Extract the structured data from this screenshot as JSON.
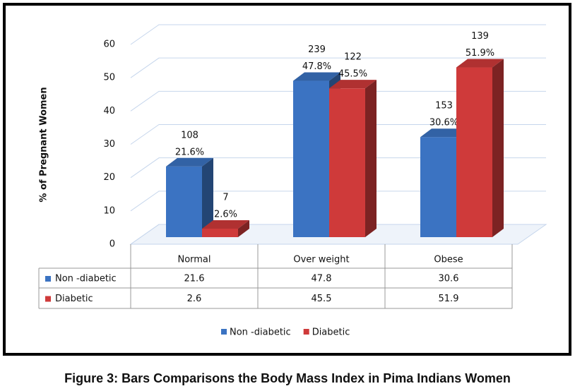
{
  "chart_data": {
    "type": "bar3d",
    "caption": "Figure 3: Bars Comparisons the Body Mass Index in Pima Indians Women",
    "y_label": "% of Pregnant Women",
    "categories": [
      "Normal",
      "Over weight",
      "Obese"
    ],
    "series": [
      {
        "name": "Non -diabetic",
        "color": "#3b73c2",
        "values": [
          21.6,
          47.8,
          30.6
        ],
        "value_labels": [
          "21.6%",
          "47.8%",
          "30.6%"
        ],
        "counts": [
          108,
          239,
          153
        ]
      },
      {
        "name": "Diabetic",
        "color": "#cf3a3a",
        "values": [
          2.6,
          45.5,
          51.9
        ],
        "value_labels": [
          "2.6%",
          "45.5%",
          "51.9%"
        ],
        "counts": [
          7,
          122,
          139
        ]
      }
    ],
    "ylim": [
      0,
      60
    ],
    "yticks": [
      0,
      10,
      20,
      30,
      40,
      50,
      60
    ],
    "grid": true,
    "legend": "bottom"
  }
}
